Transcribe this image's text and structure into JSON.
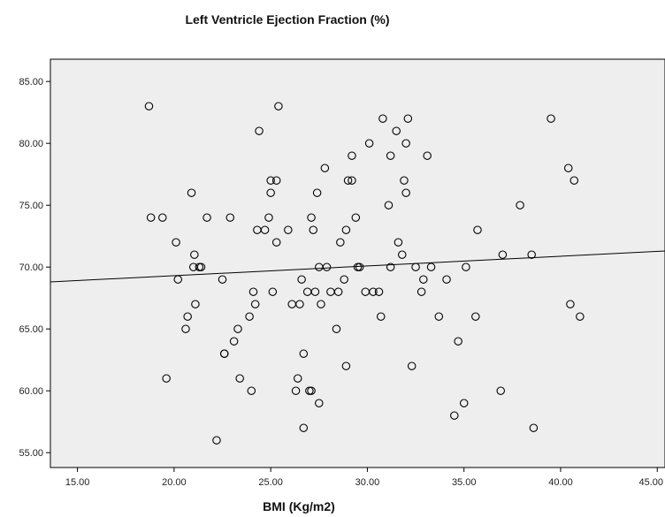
{
  "chart_data": {
    "type": "scatter",
    "title": "Left Ventricle Ejection Fraction (%)",
    "xlabel": "BMI (Kg/m2)",
    "ylabel": "",
    "xlim": [
      13.6,
      45.4
    ],
    "ylim": [
      53.8,
      86.8
    ],
    "x_ticks": [
      "15.00",
      "20.00",
      "25.00",
      "30.00",
      "35.00",
      "40.00",
      "45.00"
    ],
    "y_ticks": [
      "55.00",
      "60.00",
      "65.00",
      "70.00",
      "75.00",
      "80.00",
      "85.00"
    ],
    "grid": false,
    "plot_background": "#eeeeee",
    "fit_line": {
      "x": [
        13.6,
        45.4
      ],
      "y": [
        68.8,
        71.3
      ]
    },
    "points": [
      [
        18.7,
        83
      ],
      [
        18.8,
        74
      ],
      [
        19.4,
        74
      ],
      [
        19.6,
        61
      ],
      [
        20.1,
        72
      ],
      [
        20.2,
        69
      ],
      [
        20.6,
        65
      ],
      [
        20.7,
        66
      ],
      [
        20.9,
        76
      ],
      [
        21.0,
        70
      ],
      [
        21.05,
        71
      ],
      [
        21.1,
        67
      ],
      [
        21.3,
        70
      ],
      [
        21.4,
        70
      ],
      [
        21.7,
        74
      ],
      [
        22.2,
        56
      ],
      [
        22.5,
        69
      ],
      [
        22.6,
        63
      ],
      [
        22.6,
        63
      ],
      [
        22.9,
        74
      ],
      [
        23.1,
        64
      ],
      [
        23.3,
        65
      ],
      [
        23.4,
        61
      ],
      [
        23.9,
        66
      ],
      [
        24.0,
        60
      ],
      [
        24.1,
        68
      ],
      [
        24.2,
        67
      ],
      [
        24.3,
        73
      ],
      [
        24.4,
        81
      ],
      [
        24.7,
        73
      ],
      [
        24.9,
        74
      ],
      [
        25.0,
        77
      ],
      [
        25.0,
        76
      ],
      [
        25.1,
        68
      ],
      [
        25.3,
        77
      ],
      [
        25.3,
        72
      ],
      [
        25.4,
        83
      ],
      [
        25.9,
        73
      ],
      [
        26.1,
        67
      ],
      [
        26.3,
        60
      ],
      [
        26.4,
        61
      ],
      [
        26.5,
        67
      ],
      [
        26.6,
        69
      ],
      [
        26.7,
        63
      ],
      [
        26.7,
        57
      ],
      [
        26.9,
        68
      ],
      [
        27.0,
        60
      ],
      [
        27.1,
        60
      ],
      [
        27.1,
        74
      ],
      [
        27.2,
        73
      ],
      [
        27.3,
        68
      ],
      [
        27.4,
        76
      ],
      [
        27.5,
        59
      ],
      [
        27.5,
        70
      ],
      [
        27.6,
        67
      ],
      [
        27.8,
        78
      ],
      [
        27.9,
        70
      ],
      [
        28.1,
        68
      ],
      [
        28.4,
        65
      ],
      [
        28.5,
        68
      ],
      [
        28.6,
        72
      ],
      [
        28.8,
        69
      ],
      [
        28.9,
        62
      ],
      [
        28.9,
        73
      ],
      [
        29.0,
        77
      ],
      [
        29.2,
        77
      ],
      [
        29.2,
        79
      ],
      [
        29.4,
        74
      ],
      [
        29.5,
        70
      ],
      [
        29.6,
        70
      ],
      [
        29.9,
        68
      ],
      [
        30.1,
        80
      ],
      [
        30.3,
        68
      ],
      [
        30.6,
        68
      ],
      [
        30.7,
        66
      ],
      [
        30.8,
        82
      ],
      [
        31.1,
        75
      ],
      [
        31.2,
        79
      ],
      [
        31.2,
        70
      ],
      [
        31.5,
        81
      ],
      [
        31.6,
        72
      ],
      [
        31.8,
        71
      ],
      [
        31.9,
        77
      ],
      [
        32.0,
        76
      ],
      [
        32.0,
        80
      ],
      [
        32.1,
        82
      ],
      [
        32.3,
        62
      ],
      [
        32.5,
        70
      ],
      [
        32.8,
        68
      ],
      [
        32.9,
        69
      ],
      [
        33.1,
        79
      ],
      [
        33.3,
        70
      ],
      [
        33.7,
        66
      ],
      [
        34.1,
        69
      ],
      [
        34.5,
        58
      ],
      [
        34.7,
        64
      ],
      [
        35.0,
        59
      ],
      [
        35.1,
        70
      ],
      [
        35.6,
        66
      ],
      [
        35.7,
        73
      ],
      [
        36.9,
        60
      ],
      [
        37.0,
        71
      ],
      [
        37.9,
        75
      ],
      [
        38.5,
        71
      ],
      [
        38.6,
        57
      ],
      [
        39.5,
        82
      ],
      [
        40.4,
        78
      ],
      [
        40.5,
        67
      ],
      [
        40.7,
        77
      ],
      [
        41.0,
        66
      ]
    ]
  }
}
